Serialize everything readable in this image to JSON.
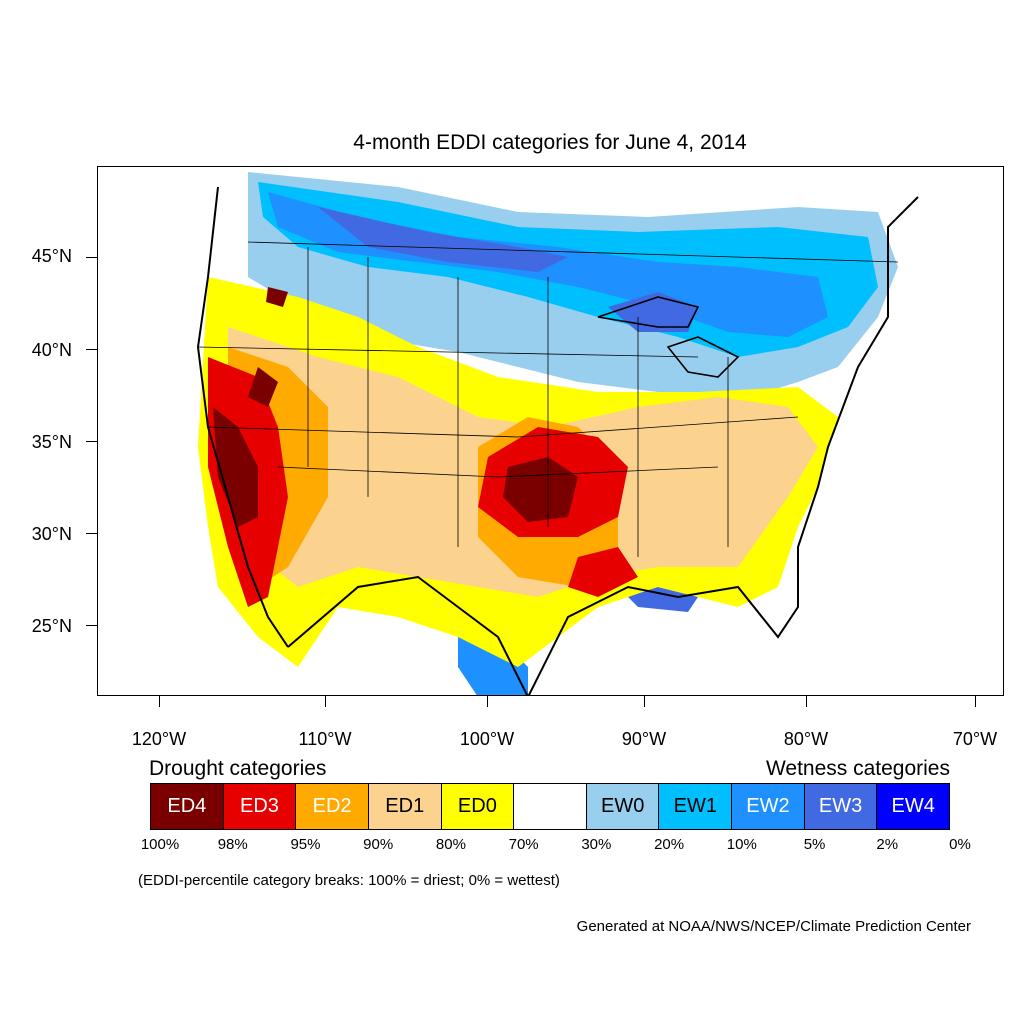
{
  "title": "4-month EDDI categories for June 4, 2014",
  "axes": {
    "lat_ticks": [
      "45°N",
      "40°N",
      "35°N",
      "30°N",
      "25°N"
    ],
    "lon_ticks": [
      "120°W",
      "110°W",
      "100°W",
      "90°W",
      "80°W",
      "70°W"
    ]
  },
  "legend": {
    "drought_heading": "Drought categories",
    "wetness_heading": "Wetness categories",
    "categories": [
      {
        "label": "ED4",
        "color": "#7a0000",
        "text_color": "#ffffff"
      },
      {
        "label": "ED3",
        "color": "#e60000",
        "text_color": "#ffffff"
      },
      {
        "label": "ED2",
        "color": "#ffaa00",
        "text_color": "#ffffff"
      },
      {
        "label": "ED1",
        "color": "#fcd28f",
        "text_color": "#000000"
      },
      {
        "label": "ED0",
        "color": "#ffff00",
        "text_color": "#000000"
      },
      {
        "label": "",
        "color": "#ffffff",
        "text_color": "#000000"
      },
      {
        "label": "EW0",
        "color": "#99cfee",
        "text_color": "#000000"
      },
      {
        "label": "EW1",
        "color": "#00bfff",
        "text_color": "#000000"
      },
      {
        "label": "EW2",
        "color": "#1e90ff",
        "text_color": "#ffffff"
      },
      {
        "label": "EW3",
        "color": "#4169e1",
        "text_color": "#ffffff"
      },
      {
        "label": "EW4",
        "color": "#0000ff",
        "text_color": "#ffffff"
      }
    ],
    "percent_breaks": [
      "100%",
      "98%",
      "95%",
      "90%",
      "80%",
      "70%",
      "30%",
      "20%",
      "10%",
      "5%",
      "2%",
      "0%"
    ]
  },
  "note": "(EDDI-percentile category breaks: 100% = driest; 0% = wettest)",
  "credit": "Generated at NOAA/NWS/NCEP/Climate Prediction Center"
}
